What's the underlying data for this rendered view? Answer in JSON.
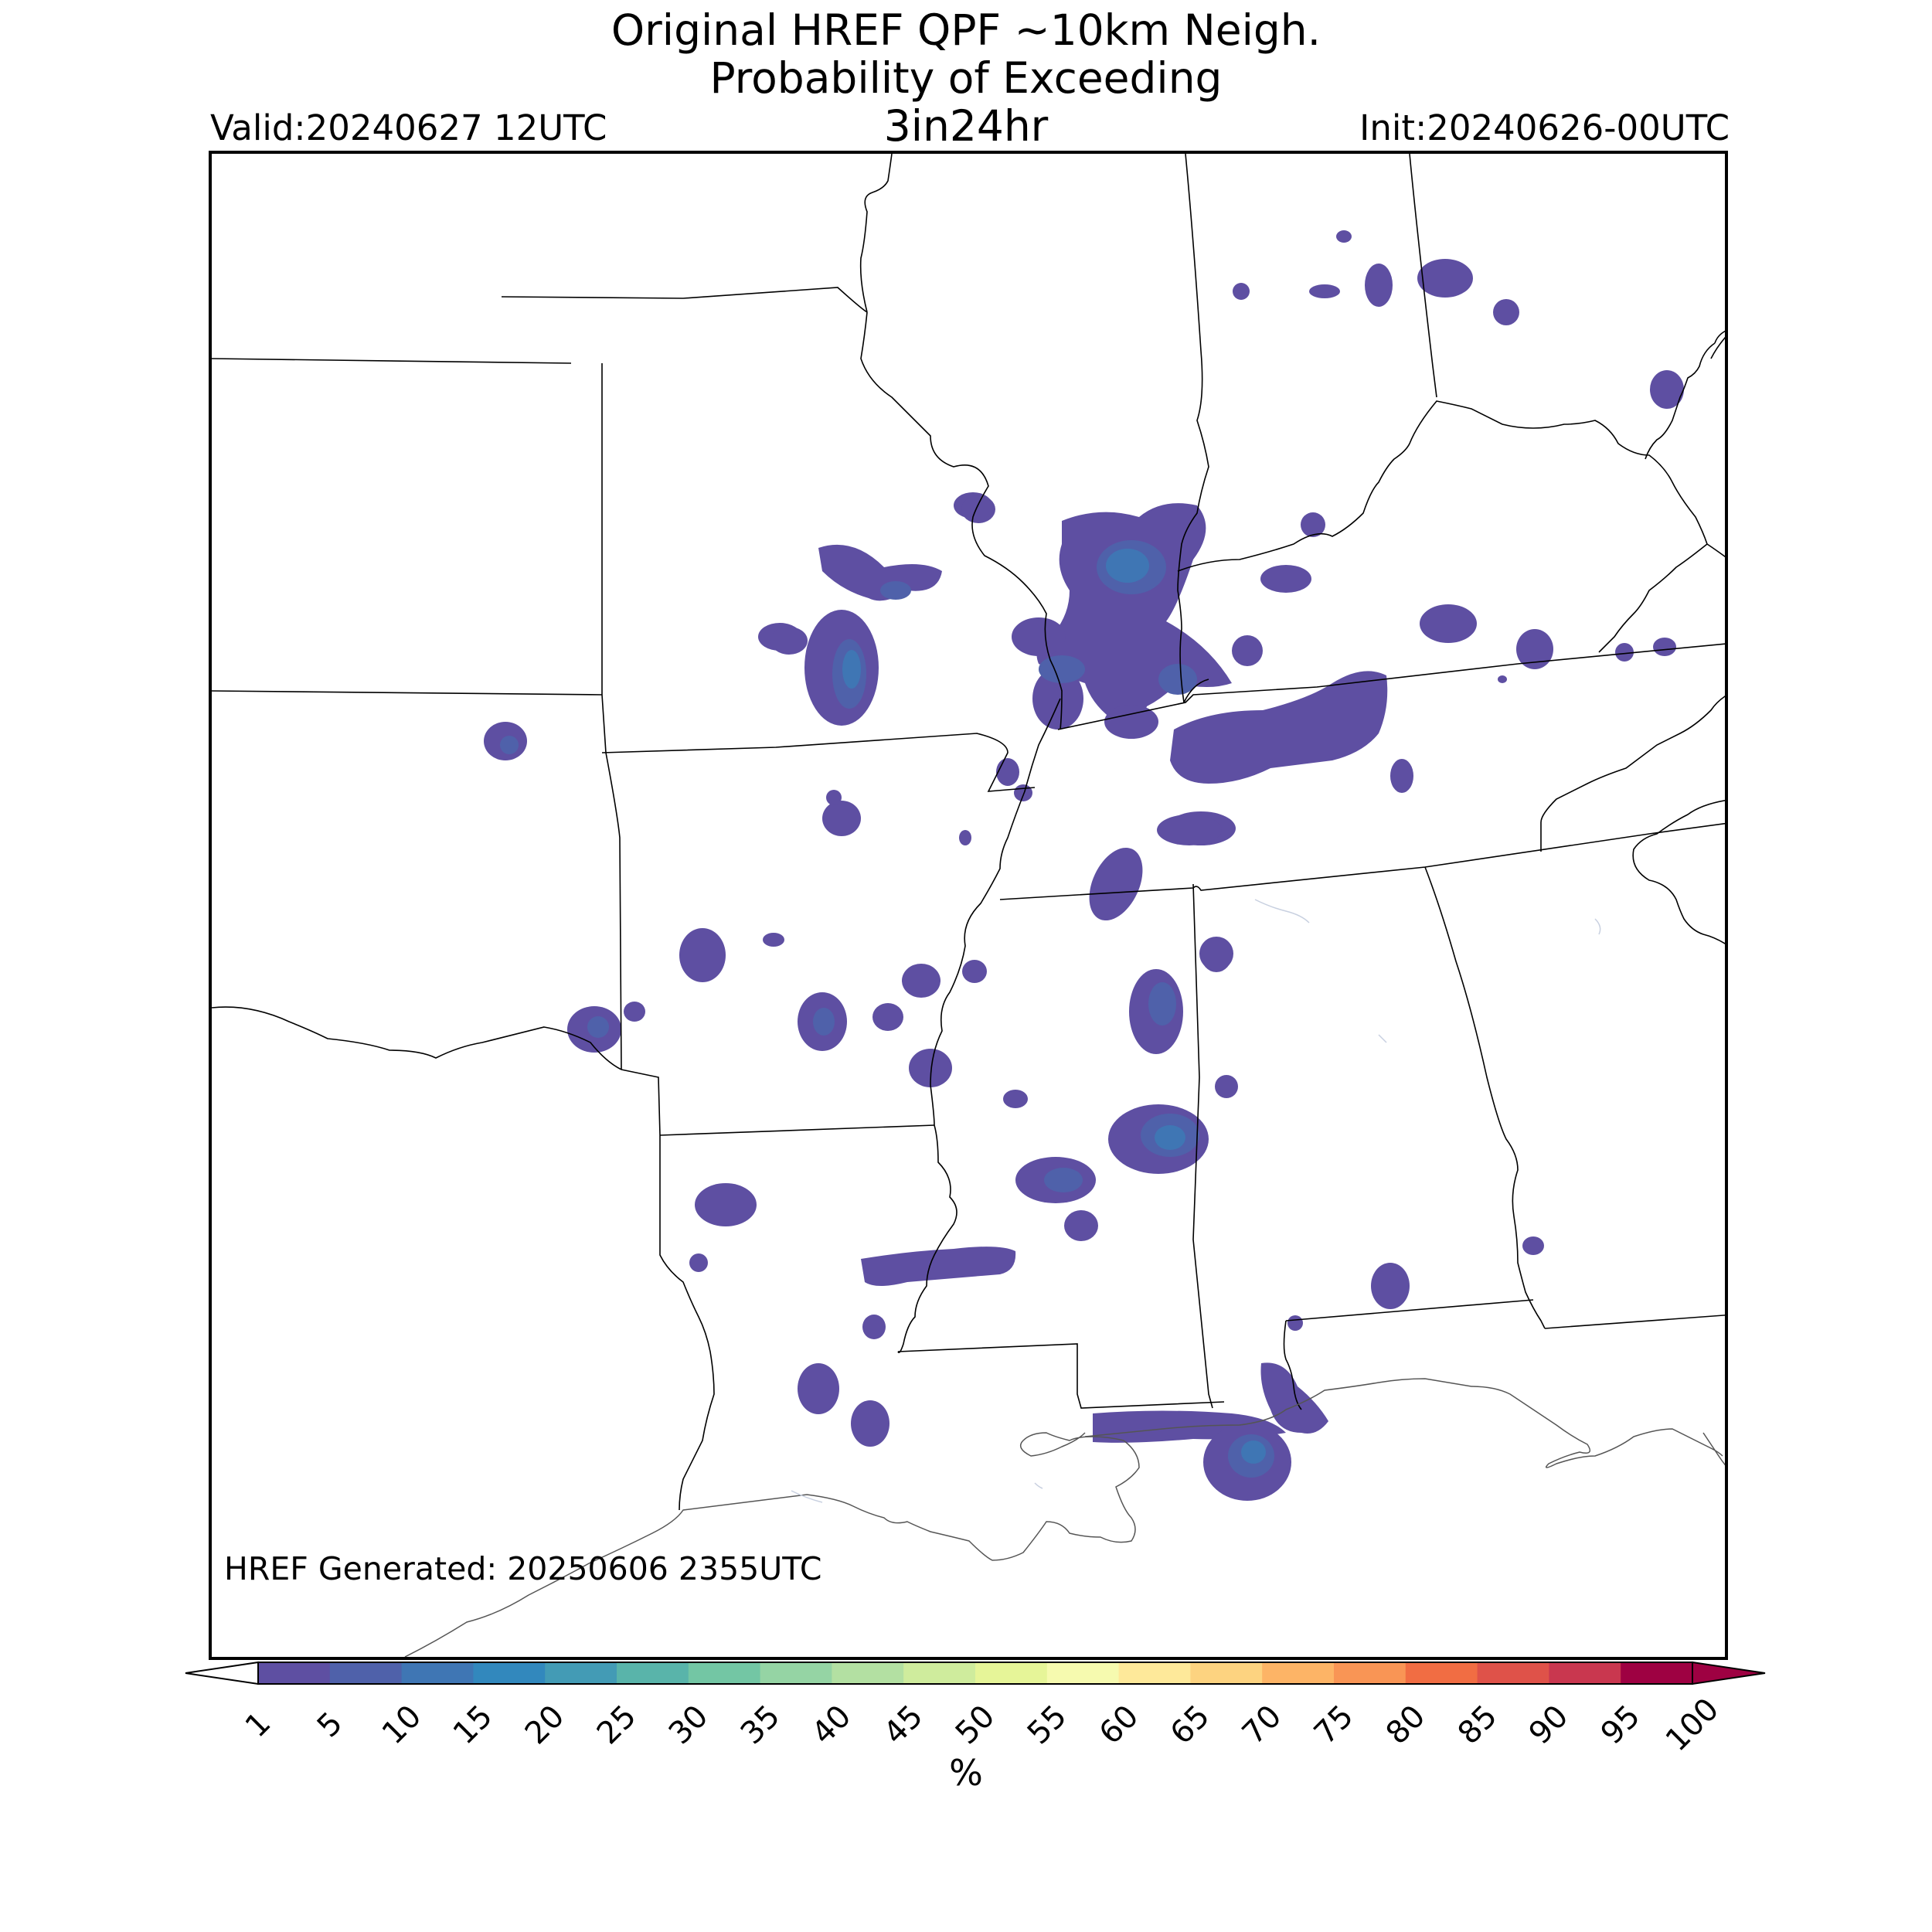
{
  "title": {
    "line1": "Original HREF QPF ~10km Neigh.",
    "line2": "Probability of Exceeding",
    "line3": "3in24hr"
  },
  "valid": "Valid:20240627 12UTC",
  "init": "Init:20240626-00UTC",
  "generated": "HREF Generated: 20250606 2355UTC",
  "colorbar": {
    "unit": "%",
    "ticks": [
      "1",
      "5",
      "10",
      "15",
      "20",
      "25",
      "30",
      "35",
      "40",
      "45",
      "50",
      "55",
      "60",
      "65",
      "70",
      "75",
      "80",
      "85",
      "90",
      "95",
      "100"
    ],
    "colors": [
      "#5e4fa2",
      "#4f61aa",
      "#3f76b4",
      "#3288bd",
      "#439bb5",
      "#59b4aa",
      "#73c6a4",
      "#95d4a4",
      "#b3e0a2",
      "#cfec9d",
      "#e6f598",
      "#f6faaf",
      "#fee99a",
      "#fdd380",
      "#fdb466",
      "#f99555",
      "#f16d43",
      "#df5249",
      "#c9374f",
      "#9e0142"
    ],
    "extend": "both",
    "over_color": "#9e0142",
    "under_color": "#ffffff"
  },
  "regions": [
    {
      "name": "1-5",
      "color": "#5e4fa2"
    },
    {
      "name": "5-10",
      "color": "#4f61aa"
    },
    {
      "name": "10-15",
      "color": "#3f76b4"
    },
    {
      "name": "15-20",
      "color": "#3288bd"
    }
  ]
}
